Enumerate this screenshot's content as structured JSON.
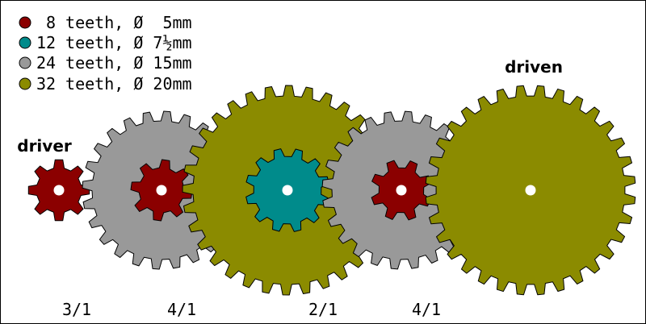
{
  "legend": [
    {
      "color": "#8b0000",
      "count": " 8",
      "text": " teeth, Ø  5mm"
    },
    {
      "color": "#008b8b",
      "count": "12",
      "text": " teeth, Ø 7½mm"
    },
    {
      "color": "#999999",
      "count": "24",
      "text": " teeth, Ø 15mm"
    },
    {
      "color": "#8b8b00",
      "count": "32",
      "text": " teeth, Ø 20mm"
    }
  ],
  "labels": {
    "driver": "driver",
    "driven": "driven"
  },
  "ratios": [
    "3/1",
    "4/1",
    "2/1",
    "4/1"
  ],
  "gears": [
    {
      "name": "driver-gear",
      "teeth": 8,
      "color": "#8b0000"
    },
    {
      "name": "gray-gear-1",
      "teeth": 24,
      "color": "#999999"
    },
    {
      "name": "red-pinion-1",
      "teeth": 8,
      "color": "#8b0000"
    },
    {
      "name": "olive-gear-1",
      "teeth": 32,
      "color": "#8b8b00"
    },
    {
      "name": "teal-pinion",
      "teeth": 12,
      "color": "#008b8b"
    },
    {
      "name": "gray-gear-2",
      "teeth": 24,
      "color": "#999999"
    },
    {
      "name": "red-pinion-2",
      "teeth": 8,
      "color": "#8b0000"
    },
    {
      "name": "driven-gear",
      "teeth": 32,
      "color": "#8b8b00"
    }
  ]
}
